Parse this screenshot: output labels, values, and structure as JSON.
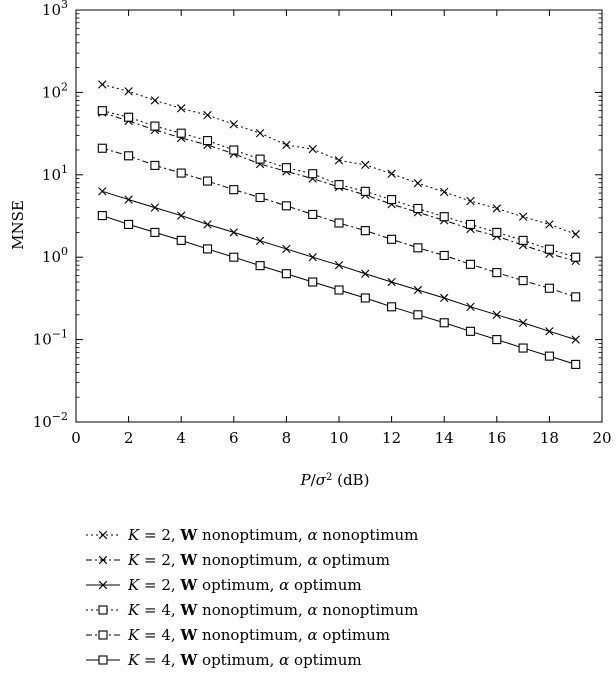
{
  "chart_data": {
    "type": "line",
    "title": "",
    "xlabel": "P/σ² (dB)",
    "ylabel": "MNSE",
    "xlim": [
      0,
      20
    ],
    "ylim": [
      0.01,
      1000
    ],
    "yscale": "log",
    "grid": false,
    "legend_placement": "below",
    "x_ticks": [
      "0",
      "2",
      "4",
      "6",
      "8",
      "10",
      "12",
      "14",
      "16",
      "18",
      "20"
    ],
    "y_ticks": [
      {
        "base": "10",
        "exp": "−2"
      },
      {
        "base": "10",
        "exp": "−1"
      },
      {
        "base": "10",
        "exp": "0"
      },
      {
        "base": "10",
        "exp": "1"
      },
      {
        "base": "10",
        "exp": "2"
      },
      {
        "base": "10",
        "exp": "3"
      }
    ],
    "x": [
      1,
      2,
      3,
      4,
      5,
      6,
      7,
      8,
      9,
      10,
      11,
      12,
      13,
      14,
      15,
      16,
      17,
      18,
      19
    ],
    "series": [
      {
        "name": "K = 2, W nonoptimum, α nonoptimum",
        "marker": "x",
        "dash": "dotted",
        "values": [
          125,
          103,
          80,
          64,
          53,
          41,
          32,
          23,
          20.5,
          15,
          13.2,
          10.3,
          7.9,
          6.2,
          4.8,
          3.9,
          3.1,
          2.5,
          1.9
        ]
      },
      {
        "name": "K = 2, W nonoptimum, α optimum",
        "marker": "x",
        "dash": "dashdot",
        "values": [
          57,
          45,
          35,
          28,
          23,
          18,
          13.5,
          11,
          9,
          7.1,
          5.7,
          4.4,
          3.5,
          2.8,
          2.2,
          1.8,
          1.4,
          1.1,
          0.9
        ]
      },
      {
        "name": "K = 2, W optimum, α optimum",
        "marker": "x",
        "dash": "solid",
        "values": [
          6.3,
          5.0,
          4.0,
          3.2,
          2.5,
          2.0,
          1.58,
          1.26,
          1.0,
          0.8,
          0.63,
          0.5,
          0.4,
          0.32,
          0.25,
          0.2,
          0.16,
          0.126,
          0.1
        ]
      },
      {
        "name": "K = 4, W nonoptimum, α nonoptimum",
        "marker": "square",
        "dash": "dotted",
        "values": [
          60,
          50,
          39,
          32,
          26,
          20,
          15.5,
          12.2,
          10.3,
          7.6,
          6.3,
          5.0,
          3.9,
          3.1,
          2.5,
          2.0,
          1.6,
          1.25,
          1.0
        ]
      },
      {
        "name": "K = 4, W nonoptimum, α optimum",
        "marker": "square",
        "dash": "dashdot",
        "values": [
          21,
          17,
          13,
          10.5,
          8.4,
          6.6,
          5.3,
          4.2,
          3.3,
          2.6,
          2.1,
          1.65,
          1.3,
          1.05,
          0.82,
          0.65,
          0.52,
          0.42,
          0.33
        ]
      },
      {
        "name": "K = 4, W optimum, α optimum",
        "marker": "square",
        "dash": "solid",
        "values": [
          3.2,
          2.5,
          2.0,
          1.6,
          1.26,
          1.0,
          0.79,
          0.63,
          0.5,
          0.4,
          0.32,
          0.25,
          0.2,
          0.16,
          0.126,
          0.1,
          0.079,
          0.063,
          0.05
        ]
      }
    ],
    "legend": [
      {
        "k": "K",
        "eq": " = 2, ",
        "w": "W",
        "mid": " nonoptimum, ",
        "a": "α",
        "end": " nonoptimum"
      },
      {
        "k": "K",
        "eq": " = 2, ",
        "w": "W",
        "mid": " nonoptimum, ",
        "a": "α",
        "end": " optimum"
      },
      {
        "k": "K",
        "eq": " = 2, ",
        "w": "W",
        "mid": " optimum, ",
        "a": "α",
        "end": " optimum"
      },
      {
        "k": "K",
        "eq": " = 4, ",
        "w": "W",
        "mid": " nonoptimum, ",
        "a": "α",
        "end": " nonoptimum"
      },
      {
        "k": "K",
        "eq": " = 4, ",
        "w": "W",
        "mid": " nonoptimum, ",
        "a": "α",
        "end": " optimum"
      },
      {
        "k": "K",
        "eq": " = 4, ",
        "w": "W",
        "mid": " optimum, ",
        "a": "α",
        "end": " optimum"
      }
    ]
  }
}
